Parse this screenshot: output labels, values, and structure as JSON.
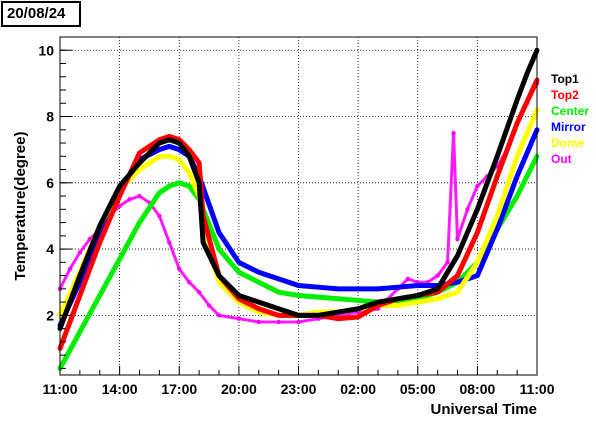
{
  "date_label": "20/08/24",
  "chart_data": {
    "type": "scatter",
    "xlabel": "Universal Time",
    "ylabel": "Temperature(degree)",
    "xlim": [
      0,
      24
    ],
    "ylim": [
      0.2,
      10.4
    ],
    "x_ticks": [
      {
        "value": 0,
        "label": "11:00"
      },
      {
        "value": 3,
        "label": "14:00"
      },
      {
        "value": 6,
        "label": "17:00"
      },
      {
        "value": 9,
        "label": "20:00"
      },
      {
        "value": 12,
        "label": "23:00"
      },
      {
        "value": 15,
        "label": "02:00"
      },
      {
        "value": 18,
        "label": "05:00"
      },
      {
        "value": 21,
        "label": "08:00"
      },
      {
        "value": 24,
        "label": "11:00"
      }
    ],
    "y_ticks": [
      {
        "value": 2,
        "label": "2"
      },
      {
        "value": 4,
        "label": "4"
      },
      {
        "value": 6,
        "label": "6"
      },
      {
        "value": 8,
        "label": "8"
      },
      {
        "value": 10,
        "label": "10"
      }
    ],
    "grid": true,
    "legend_position": "right",
    "series": [
      {
        "name": "Top1",
        "color": "#000000",
        "x": [
          0,
          1,
          2,
          3,
          4,
          5,
          5.5,
          6,
          6.5,
          7,
          7.2,
          8,
          9,
          10,
          11,
          12,
          13,
          14,
          15,
          16,
          17,
          18,
          19,
          20,
          21,
          22,
          23,
          23.5,
          24
        ],
        "y": [
          1.6,
          3.2,
          4.7,
          5.9,
          6.6,
          7.2,
          7.3,
          7.2,
          6.8,
          6.0,
          4.2,
          3.2,
          2.6,
          2.4,
          2.2,
          2.0,
          2.0,
          2.1,
          2.2,
          2.4,
          2.5,
          2.6,
          2.8,
          3.8,
          5.2,
          6.8,
          8.5,
          9.3,
          10.0
        ]
      },
      {
        "name": "Top2",
        "color": "#ff0000",
        "x": [
          0,
          1,
          2,
          3,
          4,
          5,
          5.5,
          6,
          6.5,
          7,
          7.2,
          8,
          9,
          10,
          11,
          12,
          13,
          14,
          15,
          16,
          17,
          18,
          19,
          20,
          21,
          22,
          23,
          24
        ],
        "y": [
          1.0,
          2.6,
          4.2,
          5.6,
          6.9,
          7.3,
          7.4,
          7.3,
          7.0,
          6.6,
          5.0,
          3.2,
          2.5,
          2.2,
          2.0,
          2.0,
          2.0,
          1.9,
          1.95,
          2.3,
          2.5,
          2.6,
          2.7,
          3.2,
          4.5,
          6.2,
          7.8,
          9.1
        ]
      },
      {
        "name": "Center",
        "color": "#00ee00",
        "x": [
          0,
          1,
          2,
          3,
          4,
          5,
          5.5,
          6,
          6.5,
          7,
          8,
          9,
          10,
          11,
          12,
          13,
          14,
          15,
          16,
          17,
          18,
          19,
          20,
          21,
          22,
          23,
          24
        ],
        "y": [
          0.4,
          1.5,
          2.6,
          3.7,
          4.8,
          5.7,
          5.9,
          6.0,
          5.9,
          5.5,
          4.0,
          3.3,
          3.0,
          2.7,
          2.6,
          2.55,
          2.5,
          2.45,
          2.4,
          2.4,
          2.5,
          2.7,
          3.0,
          3.6,
          4.6,
          5.6,
          6.8
        ]
      },
      {
        "name": "Mirror",
        "color": "#0000ff",
        "x": [
          0,
          1,
          2,
          3,
          4,
          5,
          5.5,
          6,
          6.5,
          7,
          8,
          9,
          10,
          11,
          12,
          13,
          14,
          15,
          16,
          17,
          18,
          19,
          20,
          21,
          22,
          23,
          24
        ],
        "y": [
          1.7,
          3.0,
          4.5,
          5.8,
          6.7,
          7.0,
          7.1,
          7.0,
          6.8,
          6.2,
          4.5,
          3.6,
          3.3,
          3.1,
          2.9,
          2.85,
          2.8,
          2.8,
          2.8,
          2.85,
          2.9,
          2.9,
          3.0,
          3.2,
          4.6,
          6.2,
          7.6
        ]
      },
      {
        "name": "Dome",
        "color": "#ffff00",
        "x": [
          0,
          1,
          2,
          3,
          4,
          5,
          5.5,
          6,
          6.5,
          7,
          7.5,
          8,
          9,
          10,
          11,
          12,
          13,
          14,
          15,
          16,
          17,
          18,
          19,
          20,
          21,
          22,
          23,
          24
        ],
        "y": [
          2.0,
          3.3,
          4.7,
          5.8,
          6.4,
          6.8,
          6.8,
          6.7,
          6.3,
          5.6,
          4.0,
          3.0,
          2.4,
          2.1,
          2.0,
          2.0,
          2.1,
          2.1,
          2.2,
          2.3,
          2.3,
          2.4,
          2.5,
          2.7,
          3.6,
          5.0,
          6.8,
          8.2
        ]
      },
      {
        "name": "Out",
        "color": "#ff00ff",
        "x": [
          0,
          0.5,
          1,
          1.5,
          2,
          2.5,
          3,
          3.5,
          4,
          4.5,
          5,
          5.5,
          6,
          6.5,
          7,
          7.5,
          8,
          9,
          10,
          11,
          12,
          13,
          14,
          15,
          16,
          17,
          17.5,
          18,
          18.5,
          19,
          19.5,
          19.8,
          20,
          20.5,
          21,
          21.5,
          22,
          22.5,
          23,
          23.5,
          24
        ],
        "y": [
          2.8,
          3.4,
          3.9,
          4.3,
          4.6,
          5.0,
          5.3,
          5.5,
          5.6,
          5.4,
          5.0,
          4.2,
          3.4,
          3.0,
          2.7,
          2.3,
          2.0,
          1.9,
          1.8,
          1.8,
          1.8,
          1.9,
          2.0,
          2.1,
          2.2,
          2.8,
          3.1,
          3.0,
          3.0,
          3.2,
          3.6,
          7.5,
          4.3,
          5.2,
          5.9,
          6.2,
          6.5,
          7.0,
          7.8,
          8.4,
          9.0
        ]
      }
    ]
  }
}
